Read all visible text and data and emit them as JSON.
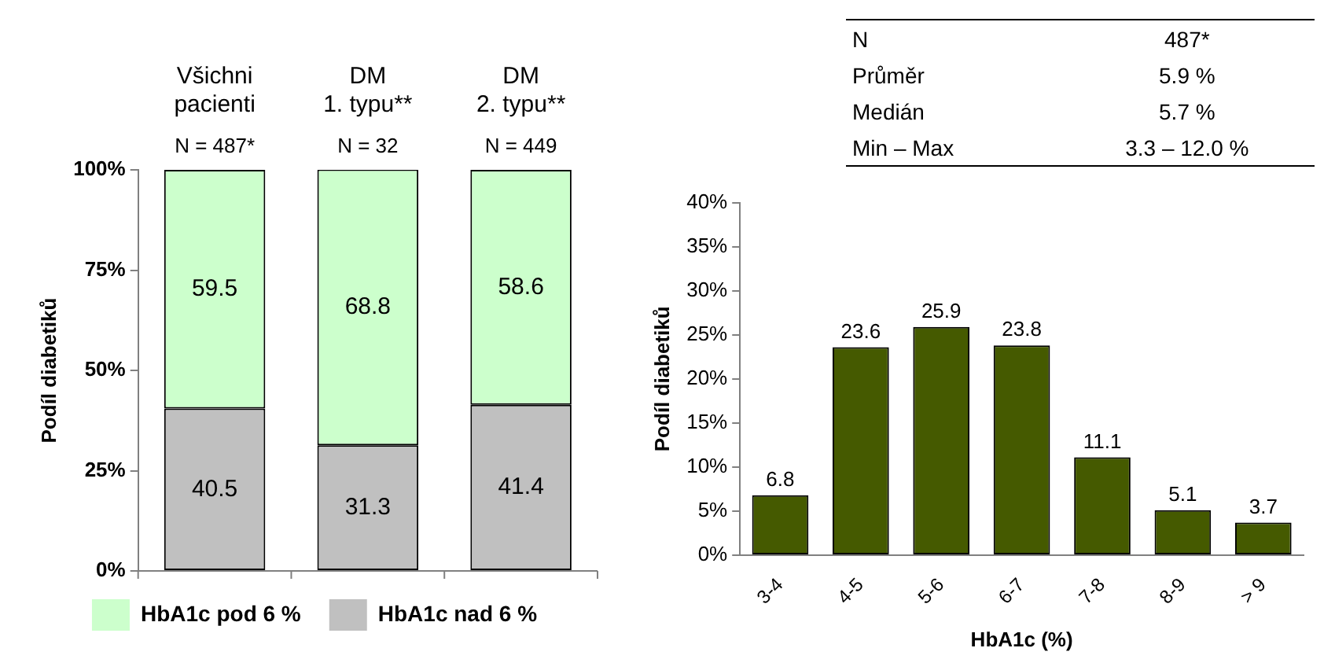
{
  "chart_data": [
    {
      "type": "bar",
      "stacked": true,
      "categories": [
        "Všichni pacienti",
        "DM 1. typu**",
        "DM 2. typu**"
      ],
      "series": [
        {
          "name": "HbA1c nad 6 %",
          "color": "#c0c0c0",
          "values": [
            40.5,
            31.3,
            41.4
          ]
        },
        {
          "name": "HbA1c pod 6 %",
          "color": "#ccffcc",
          "values": [
            59.5,
            68.8,
            58.6
          ]
        }
      ],
      "ylabel": "Podíl diabetiků",
      "ylim": [
        0,
        100
      ],
      "yticks": [
        {
          "value": 0,
          "label": "0%"
        },
        {
          "value": 25,
          "label": "25%"
        },
        {
          "value": 50,
          "label": "50%"
        },
        {
          "value": 75,
          "label": "75%"
        },
        {
          "value": 100,
          "label": "100%"
        }
      ],
      "annotations": [
        {
          "text": "N = 487*",
          "x": "Všichni pacienti",
          "y": 100
        },
        {
          "text": "N = 32",
          "x": "DM 1. typu**",
          "y": 100
        },
        {
          "text": "N = 449",
          "x": "DM 2. typu**",
          "y": 100
        }
      ],
      "data_labels": true,
      "legend": "bottom",
      "grid": false
    },
    {
      "type": "other",
      "annotations": [
        "N",
        "487*",
        "Průměr",
        "5.9 %",
        "Medián",
        "5.7 %",
        "Min – Max",
        "3.3 – 12.0 %"
      ]
    },
    {
      "type": "bar",
      "categories": [
        "3-4",
        "4-5",
        "5-6",
        "6-7",
        "7-8",
        "8-9",
        "> 9"
      ],
      "values": [
        6.8,
        23.6,
        25.9,
        23.8,
        11.1,
        5.1,
        3.7
      ],
      "color": "#455a00",
      "xlabel": "HbA1c (%)",
      "ylabel": "Podíl diabetiků",
      "ylim": [
        0,
        40
      ],
      "yticks": [
        {
          "value": 0,
          "label": "0%"
        },
        {
          "value": 5,
          "label": "5%"
        },
        {
          "value": 10,
          "label": "10%"
        },
        {
          "value": 15,
          "label": "15%"
        },
        {
          "value": 20,
          "label": "20%"
        },
        {
          "value": 25,
          "label": "25%"
        },
        {
          "value": 30,
          "label": "30%"
        },
        {
          "value": 35,
          "label": "35%"
        },
        {
          "value": 40,
          "label": "40%"
        }
      ],
      "data_labels": true,
      "grid": false
    }
  ]
}
